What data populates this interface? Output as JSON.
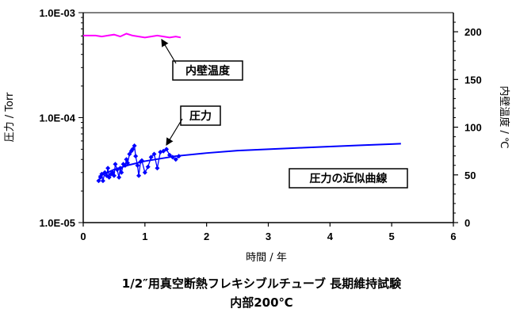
{
  "chart_data": {
    "type": "scatter",
    "title": "1/2″用真空断熱フレキシブルチューブ 長期維持試験",
    "subtitle": "内部200℃",
    "xlabel": "時間 / 年",
    "ylabel_left": "圧力 / Torr",
    "ylabel_right": "内壁温度 / ℃",
    "xlim": [
      0,
      6
    ],
    "ylim_left": [
      1e-05,
      0.001
    ],
    "ylim_right": [
      0,
      220
    ],
    "y_left_scale": "log",
    "grid": false,
    "x_ticks": [
      "0",
      "1",
      "2",
      "3",
      "4",
      "5",
      "6"
    ],
    "y_left_ticks": [
      {
        "label": "1.0E-03",
        "value": 0.001
      },
      {
        "label": "1.0E-04",
        "value": 0.0001
      },
      {
        "label": "1.0E-05",
        "value": 1e-05
      }
    ],
    "y_right_ticks": [
      {
        "label": "0",
        "value": 0
      },
      {
        "label": "50",
        "value": 50
      },
      {
        "label": "100",
        "value": 100
      },
      {
        "label": "150",
        "value": 150
      },
      {
        "label": "200",
        "value": 200
      }
    ],
    "series": [
      {
        "name": "内壁温度",
        "axis": "right",
        "color": "#ff00ff",
        "style": "line",
        "x": [
          0.0,
          0.1,
          0.2,
          0.3,
          0.4,
          0.5,
          0.6,
          0.7,
          0.8,
          0.9,
          1.0,
          1.1,
          1.2,
          1.3,
          1.4,
          1.5,
          1.58
        ],
        "y": [
          196,
          196,
          196,
          195,
          196,
          197,
          195,
          198,
          196,
          195,
          194,
          195,
          196,
          195,
          194,
          195,
          194
        ]
      },
      {
        "name": "圧力",
        "axis": "left",
        "color": "#0000ff",
        "style": "marker-line",
        "x": [
          0.25,
          0.28,
          0.3,
          0.32,
          0.35,
          0.38,
          0.4,
          0.42,
          0.45,
          0.48,
          0.5,
          0.52,
          0.55,
          0.58,
          0.6,
          0.62,
          0.65,
          0.68,
          0.7,
          0.72,
          0.75,
          0.78,
          0.8,
          0.83,
          0.85,
          0.88,
          0.9,
          0.93,
          0.95,
          1.0,
          1.05,
          1.1,
          1.15,
          1.2,
          1.25,
          1.3,
          1.35,
          1.4,
          1.45,
          1.5,
          1.55
        ],
        "y": [
          2.5e-05,
          2.7e-05,
          2.9e-05,
          2.5e-05,
          3e-05,
          2.8e-05,
          3.3e-05,
          2.7e-05,
          2.9e-05,
          3e-05,
          2.8e-05,
          3.6e-05,
          3.2e-05,
          2.7e-05,
          3.3e-05,
          3e-05,
          3.6e-05,
          3.5e-05,
          4e-05,
          3.7e-05,
          4.5e-05,
          4.8e-05,
          5e-05,
          5.4e-05,
          4.3e-05,
          3.5e-05,
          2.8e-05,
          3.8e-05,
          3.9e-05,
          3e-05,
          3.4e-05,
          4.2e-05,
          4.5e-05,
          3.3e-05,
          4.7e-05,
          4.8e-05,
          5e-05,
          4.4e-05,
          4.2e-05,
          4e-05,
          4.3e-05
        ]
      },
      {
        "name": "圧力の近似曲線",
        "axis": "left",
        "color": "#0000ff",
        "style": "line",
        "x": [
          0.25,
          0.5,
          0.75,
          1.0,
          1.5,
          2.0,
          2.5,
          3.0,
          3.5,
          4.0,
          4.5,
          5.0,
          5.15
        ],
        "y": [
          2.75e-05,
          3.2e-05,
          3.55e-05,
          3.85e-05,
          4.3e-05,
          4.6e-05,
          4.85e-05,
          5e-05,
          5.15e-05,
          5.3e-05,
          5.45e-05,
          5.6e-05,
          5.65e-05
        ]
      }
    ],
    "annotations": [
      {
        "text": "内壁温度",
        "target_series": "内壁温度"
      },
      {
        "text": "圧力",
        "target_series": "圧力"
      },
      {
        "text": "圧力の近似曲線",
        "target_series": "圧力の近似曲線"
      }
    ]
  }
}
